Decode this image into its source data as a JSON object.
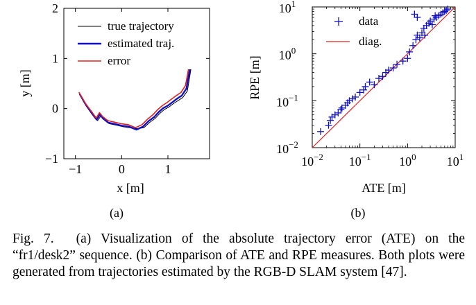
{
  "chart_data": [
    {
      "type": "line",
      "panel_label": "(a)",
      "xlabel": "x [m]",
      "ylabel": "y [m]",
      "xlim": [
        -1.25,
        1.9
      ],
      "ylim": [
        -1.0,
        2.0
      ],
      "xticks": [
        {
          "v": -1,
          "label": "−1"
        },
        {
          "v": 0,
          "label": "0"
        },
        {
          "v": 1,
          "label": "1"
        }
      ],
      "yticks": [
        {
          "v": -1,
          "label": "−1"
        },
        {
          "v": 0,
          "label": "0"
        },
        {
          "v": 1,
          "label": "1"
        },
        {
          "v": 2,
          "label": "2"
        }
      ],
      "legend_position": "top-right",
      "series": [
        {
          "name": "true trajectory",
          "color": "#000000",
          "x": [
            -0.88,
            -0.75,
            -0.62,
            -0.52,
            -0.45,
            -0.38,
            -0.27,
            -0.12,
            0.02,
            0.18,
            0.34,
            0.48,
            0.6,
            0.72,
            0.82,
            0.92,
            1.02,
            1.12,
            1.22,
            1.32,
            1.42,
            1.5
          ],
          "y": [
            0.25,
            0.05,
            -0.12,
            -0.24,
            -0.15,
            -0.22,
            -0.3,
            -0.33,
            -0.36,
            -0.38,
            -0.4,
            -0.38,
            -0.28,
            -0.2,
            -0.1,
            -0.02,
            0.03,
            0.1,
            0.16,
            0.22,
            0.35,
            0.8
          ]
        },
        {
          "name": "estimated traj.",
          "color": "#1010c0",
          "x": [
            -0.9,
            -0.77,
            -0.64,
            -0.54,
            -0.47,
            -0.4,
            -0.29,
            -0.14,
            0.0,
            0.16,
            0.32,
            0.46,
            0.58,
            0.7,
            0.8,
            0.9,
            1.0,
            1.1,
            1.2,
            1.3,
            1.4,
            1.48
          ],
          "y": [
            0.28,
            0.07,
            -0.1,
            -0.22,
            -0.12,
            -0.2,
            -0.28,
            -0.31,
            -0.34,
            -0.36,
            -0.42,
            -0.36,
            -0.25,
            -0.17,
            -0.07,
            0.01,
            0.06,
            0.13,
            0.2,
            0.26,
            0.4,
            0.82
          ]
        },
        {
          "name": "error",
          "color": "#e02020",
          "x": [
            -0.92,
            -0.78,
            -0.65,
            -0.55,
            -0.48,
            -0.41,
            -0.3,
            -0.16,
            -0.02,
            0.14,
            0.3,
            0.44,
            0.56,
            0.68,
            0.78,
            0.88,
            0.98,
            1.08,
            1.18,
            1.28,
            1.38,
            1.46
          ],
          "y": [
            0.32,
            0.1,
            -0.06,
            -0.19,
            -0.08,
            -0.16,
            -0.24,
            -0.27,
            -0.3,
            -0.32,
            -0.38,
            -0.32,
            -0.21,
            -0.12,
            -0.02,
            0.06,
            0.12,
            0.19,
            0.26,
            0.32,
            0.46,
            0.86
          ]
        }
      ]
    },
    {
      "type": "scatter",
      "panel_label": "(b)",
      "xlabel": "ATE [m]",
      "ylabel": "RPE [m]",
      "xscale": "log",
      "yscale": "log",
      "xlim": [
        0.01,
        10
      ],
      "ylim": [
        0.01,
        10
      ],
      "xticks": [
        {
          "v": 0.01,
          "base": "10",
          "exp": "−2"
        },
        {
          "v": 0.1,
          "base": "10",
          "exp": "−1"
        },
        {
          "v": 1,
          "base": "10",
          "exp": "0"
        },
        {
          "v": 10,
          "base": "10",
          "exp": "1"
        }
      ],
      "yticks": [
        {
          "v": 0.01,
          "base": "10",
          "exp": "−2"
        },
        {
          "v": 0.1,
          "base": "10",
          "exp": "−1"
        },
        {
          "v": 1,
          "base": "10",
          "exp": "0"
        },
        {
          "v": 10,
          "base": "10",
          "exp": "1"
        }
      ],
      "legend_position": "top-left",
      "series": [
        {
          "name": "data",
          "marker": "+",
          "color": "#1010c0",
          "x": [
            0.015,
            0.022,
            0.024,
            0.026,
            0.03,
            0.035,
            0.04,
            0.042,
            0.05,
            0.055,
            0.06,
            0.07,
            0.08,
            0.1,
            0.12,
            0.13,
            0.16,
            0.2,
            0.25,
            0.3,
            0.35,
            0.4,
            0.5,
            0.6,
            0.8,
            1.0,
            1.1,
            1.3,
            1.5,
            1.6,
            1.8,
            2.0,
            2.2,
            2.5,
            2.8,
            3.0,
            3.3,
            3.6,
            4.0,
            4.5,
            5.0,
            5.5,
            6.0,
            6.5,
            7.0,
            1.4,
            1.6,
            2.3,
            3.8
          ],
          "y": [
            0.022,
            0.03,
            0.038,
            0.045,
            0.05,
            0.055,
            0.065,
            0.07,
            0.08,
            0.09,
            0.1,
            0.11,
            0.12,
            0.15,
            0.17,
            0.2,
            0.25,
            0.22,
            0.3,
            0.33,
            0.4,
            0.45,
            0.5,
            0.6,
            0.7,
            0.8,
            1.1,
            1.5,
            2.0,
            2.5,
            2.2,
            2.8,
            3.5,
            4.0,
            4.5,
            5.0,
            4.2,
            5.5,
            6.0,
            6.5,
            7.0,
            7.5,
            8.0,
            8.5,
            9.0,
            7.0,
            6.0,
            2.5,
            6.5
          ]
        },
        {
          "name": "diag.",
          "line": true,
          "color": "#e02020",
          "x": [
            0.01,
            10
          ],
          "y": [
            0.01,
            10
          ]
        }
      ]
    }
  ],
  "caption": {
    "label": "Fig. 7.",
    "text": "(a) Visualization of the absolute trajectory error (ATE) on the “fr1/desk2” sequence. (b) Comparison of ATE and RPE measures. Both plots were generated from trajectories estimated by the RGB-D SLAM system [47]."
  }
}
